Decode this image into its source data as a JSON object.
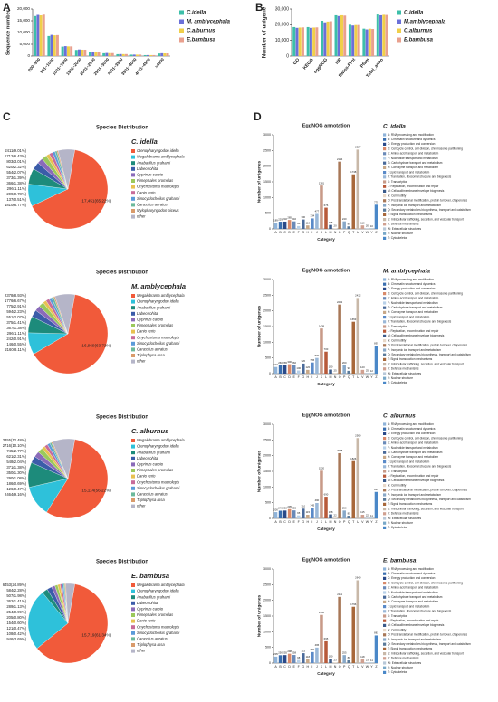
{
  "panels": [
    "A",
    "B",
    "C",
    "D"
  ],
  "chart_data": [
    {
      "type": "bar",
      "ylabel": "Sequence number",
      "categories": [
        "200~500",
        "501~1000",
        "1001~1500",
        "1501~2000",
        "2001~2500",
        "2501~3000",
        "3001~3500",
        "3501~4000",
        "4001~4500",
        ">4500"
      ],
      "series": [
        {
          "name": "C.idella",
          "color": "#3dbfa9",
          "values": [
            17000,
            8500,
            4000,
            2600,
            1800,
            1200,
            800,
            600,
            400,
            1100
          ]
        },
        {
          "name": "M. amblycephala",
          "color": "#6b70d8",
          "values": [
            17500,
            9000,
            4200,
            2800,
            1900,
            1300,
            850,
            620,
            420,
            1200
          ]
        },
        {
          "name": "C.alburnus",
          "color": "#f0cf4a",
          "values": [
            17300,
            8800,
            4100,
            2700,
            1850,
            1250,
            830,
            600,
            410,
            1150
          ]
        },
        {
          "name": "E.bambusa",
          "color": "#e9a08e",
          "values": [
            17600,
            8900,
            4100,
            2700,
            1900,
            1250,
            840,
            610,
            410,
            1150
          ]
        }
      ],
      "ylim": [
        0,
        20000
      ],
      "yticks": [
        0,
        {
          "value": 5000,
          "label": "5,000"
        },
        {
          "value": 10000,
          "label": "10,000"
        },
        {
          "value": 15000,
          "label": "15,000"
        },
        {
          "value": 20000,
          "label": "20,000"
        }
      ]
    },
    {
      "type": "bar",
      "ylabel": "Number of unigene",
      "categories": [
        "GO",
        "KEGG",
        "eggNOG",
        "NR",
        "Swiss-Prot",
        "Pfam",
        "Total_anno"
      ],
      "series": [
        {
          "name": "C.idella",
          "color": "#3dbfa9",
          "values": [
            18500,
            18500,
            22500,
            26000,
            20000,
            17500,
            26500
          ]
        },
        {
          "name": "M.amblycephala",
          "color": "#6b70d8",
          "values": [
            18000,
            18000,
            21500,
            25500,
            19500,
            17000,
            26000
          ]
        },
        {
          "name": "C.alburnus",
          "color": "#f0cf4a",
          "values": [
            18200,
            18200,
            22000,
            26000,
            19800,
            17500,
            26300
          ]
        },
        {
          "name": "E.bambusa",
          "color": "#e9a08e",
          "values": [
            18300,
            18300,
            22200,
            25800,
            19800,
            17300,
            26200
          ]
        }
      ],
      "ylim": [
        0,
        30000
      ],
      "yticks": [
        0,
        {
          "value": 10000,
          "label": "10,000"
        },
        {
          "value": 20000,
          "label": "20,000"
        },
        {
          "value": 30000,
          "label": "30,000"
        }
      ]
    },
    {
      "type": "pie",
      "title": "Species Distribution",
      "subtitle": "C. idella",
      "categories": [
        "Ctenopharyngodon idella",
        "Megalobrama amblycephala",
        "Anabarilius grahami",
        "Labeo rohita",
        "Cyprinus carpio",
        "Pimephales promelas",
        "Onychostoma macrolepis",
        "Danio rerio",
        "Sinocyclocheilus grahami",
        "Carassius auratus",
        "Mylopharyngodon piceus",
        "other"
      ],
      "values": [
        65.22,
        9.01,
        6.43,
        3.01,
        2.32,
        2.07,
        1.39,
        1.38,
        1.11,
        0.78,
        0.51,
        6.77
      ],
      "value_labels": [
        "17,451(65.22%)",
        "2411(9.01%)",
        "1712(6.43%)",
        "803(3.01%)",
        "620(2.32%)",
        "554(2.07%)",
        "373(1.39%)",
        "366(1.38%)",
        "296(1.11%)",
        "209(0.78%)",
        "137(0.51%)",
        "1810(6.77%)"
      ],
      "colors": [
        "#f15a3a",
        "#2ec1da",
        "#1d8b7b",
        "#3b5ca9",
        "#8a6bb9",
        "#9bc95b",
        "#e8c151",
        "#c86b99",
        "#5b9bd9",
        "#6bb99b",
        "#d99b6b",
        "#b5b5c8"
      ]
    },
    {
      "type": "pie",
      "title": "Species Distribution",
      "subtitle": "M. amblycephala",
      "categories": [
        "Megalobrama amblycephala",
        "Ctenopharyngodon idella",
        "Anabarilius grahami",
        "Labeo rohita",
        "Cyprinus carpio",
        "Pimephales promelas",
        "Danio rerio",
        "Onychostoma macrolepis",
        "Sinocyclocheilus grahami",
        "Carassius auratus",
        "Triplophysa rosa",
        "other"
      ],
      "values": [
        63.72,
        8.93,
        6.67,
        2.91,
        2.23,
        2.07,
        1.41,
        1.38,
        1.11,
        0.91,
        0.55,
        8.11
      ],
      "value_labels": [
        "16,969(63.72%)",
        "2378(8.93%)",
        "1776(6.67%)",
        "775(2.91%)",
        "594(2.23%)",
        "551(2.07%)",
        "375(1.41%)",
        "367(1.38%)",
        "296(1.11%)",
        "242(0.91%)",
        "146(0.55%)",
        "2160(8.11%)"
      ],
      "colors": [
        "#f15a3a",
        "#2ec1da",
        "#1d8b7b",
        "#3b5ca9",
        "#8a6bb9",
        "#9bc95b",
        "#e8c151",
        "#c86b99",
        "#5b9bd9",
        "#6bb99b",
        "#d99b6b",
        "#b5b5c8"
      ]
    },
    {
      "type": "pie",
      "title": "Species Distribution",
      "subtitle": "C. alburnus",
      "categories": [
        "Megalobrama amblycephala",
        "Ctenopharyngodon idella",
        "Anabarilius grahami",
        "Labeo rohita",
        "Cyprinus carpio",
        "Pimephales promelas",
        "Danio rerio",
        "Onychostoma macrolepis",
        "Sinocyclocheilus grahami",
        "Carassius auratus",
        "Triplophysa rosa",
        "other"
      ],
      "values": [
        56.22,
        12.48,
        10.1,
        2.77,
        2.31,
        2.04,
        1.38,
        1.3,
        1.08,
        0.69,
        0.47,
        9.16
      ],
      "value_labels": [
        "15,114(56.22%)",
        "3355(12.48%)",
        "2716(10.10%)",
        "745(2.77%)",
        "621(2.31%)",
        "548(2.04%)",
        "371(1.38%)",
        "350(1.30%)",
        "290(1.08%)",
        "186(0.69%)",
        "126(0.47%)",
        "2464(9.16%)"
      ],
      "colors": [
        "#f15a3a",
        "#2ec1da",
        "#1d8b7b",
        "#3b5ca9",
        "#8a6bb9",
        "#9bc95b",
        "#e8c151",
        "#c86b99",
        "#5b9bd9",
        "#6bb99b",
        "#d99b6b",
        "#b5b5c8"
      ]
    },
    {
      "type": "pie",
      "title": "Species Distribution",
      "subtitle": "E. bambusa",
      "categories": [
        "Megalobrama amblycephala",
        "Ctenopharyngodon idella",
        "Anabarilius grahami",
        "Labeo rohita",
        "Cyprinus carpio",
        "Pimephales promelas",
        "Danio rerio",
        "Onychostoma macrolepis",
        "Sinocyclocheilus grahami",
        "Carassius auratus",
        "Triplophysa rosa",
        "other"
      ],
      "values": [
        61.34,
        24.89,
        2.28,
        1.98,
        1.41,
        1.13,
        0.99,
        0.8,
        0.6,
        0.47,
        0.42,
        3.69
      ],
      "value_labels": [
        "15,719(61.34%)",
        "6453(24.89%)",
        "584(2.28%)",
        "507(1.98%)",
        "362(1.41%)",
        "289(1.13%)",
        "254(0.99%)",
        "205(0.80%)",
        "154(0.60%)",
        "121(0.47%)",
        "108(0.42%)",
        "946(3.69%)"
      ],
      "colors": [
        "#f15a3a",
        "#2ec1da",
        "#1d8b7b",
        "#3b5ca9",
        "#8a6bb9",
        "#9bc95b",
        "#e8c151",
        "#c86b99",
        "#5b9bd9",
        "#6bb99b",
        "#d99b6b",
        "#b5b5c8"
      ]
    },
    {
      "type": "bar",
      "title": "EggNOG annotation",
      "subtitle": "C. idella",
      "xlabel": "Category",
      "ylabel": "Number of unigenes",
      "categories": [
        "A",
        "B",
        "C",
        "D",
        "E",
        "F",
        "G",
        "H",
        "I",
        "J",
        "K",
        "L",
        "M",
        "N",
        "O",
        "P",
        "Q",
        "T",
        "U",
        "V",
        "W",
        "Y",
        "Z"
      ],
      "values": [
        189,
        229,
        232,
        285,
        240,
        90,
        300,
        110,
        334,
        477,
        1381,
        676,
        125,
        20,
        2144,
        240,
        80,
        1738,
        2527,
        110,
        20,
        10,
        770
      ],
      "ylim": [
        0,
        3000
      ],
      "yticks": [
        0,
        500,
        1000,
        1500,
        2000,
        2500,
        3000
      ]
    },
    {
      "type": "bar",
      "title": "EggNOG annotation",
      "subtitle": "M. amblycephala",
      "xlabel": "Category",
      "ylabel": "Number of unigenes",
      "categories": [
        "A",
        "B",
        "C",
        "D",
        "E",
        "F",
        "G",
        "H",
        "I",
        "J",
        "K",
        "L",
        "M",
        "N",
        "O",
        "P",
        "Q",
        "T",
        "U",
        "V",
        "W",
        "Y",
        "Z"
      ],
      "values": [
        210,
        260,
        265,
        300,
        260,
        100,
        320,
        120,
        355,
        500,
        1438,
        700,
        130,
        25,
        2202,
        260,
        90,
        1653,
        2412,
        120,
        25,
        12,
        893
      ],
      "ylim": [
        0,
        3000
      ],
      "yticks": [
        0,
        500,
        1000,
        1500,
        2000,
        2500,
        3000
      ]
    },
    {
      "type": "bar",
      "title": "EggNOG annotation",
      "subtitle": "C. alburnus",
      "xlabel": "Category",
      "ylabel": "Number of unigenes",
      "categories": [
        "A",
        "B",
        "C",
        "D",
        "E",
        "F",
        "G",
        "H",
        "I",
        "J",
        "K",
        "L",
        "M",
        "N",
        "O",
        "P",
        "Q",
        "T",
        "U",
        "V",
        "W",
        "Y",
        "Z"
      ],
      "values": [
        200,
        245,
        250,
        295,
        255,
        95,
        310,
        115,
        345,
        490,
        1520,
        690,
        128,
        22,
        2078,
        250,
        85,
        1826,
        2560,
        115,
        22,
        11,
        843
      ],
      "ylim": [
        0,
        3000
      ],
      "yticks": [
        0,
        500,
        1000,
        1500,
        2000,
        2500,
        3000
      ]
    },
    {
      "type": "bar",
      "title": "EggNOG annotation",
      "subtitle": "E. bambusa",
      "xlabel": "Category",
      "ylabel": "Number of unigenes",
      "categories": [
        "A",
        "B",
        "C",
        "D",
        "E",
        "F",
        "G",
        "H",
        "I",
        "J",
        "K",
        "L",
        "M",
        "N",
        "O",
        "P",
        "Q",
        "T",
        "U",
        "V",
        "W",
        "Y",
        "Z"
      ],
      "values": [
        205,
        250,
        255,
        298,
        258,
        98,
        315,
        118,
        350,
        495,
        1536,
        695,
        130,
        23,
        2111,
        255,
        88,
        1796,
        2640,
        118,
        23,
        11,
        881
      ],
      "ylim": [
        0,
        3000
      ],
      "yticks": [
        0,
        500,
        1000,
        1500,
        2000,
        2500,
        3000
      ]
    }
  ],
  "eggnog_legend": [
    "A: RNA processing and modification",
    "B: Chromatin structure and dynamics",
    "C: Energy production and conversion",
    "D: Cell cycle control, cell division, chromosome partitioning",
    "E: Amino acid transport and metabolism",
    "F: Nucleotide transport and metabolism",
    "G: Carbohydrate transport and metabolism",
    "H: Coenzyme transport and metabolism",
    "I: Lipid transport and metabolism",
    "J: Translation, ribosomal structure and biogenesis",
    "K: Transcription",
    "L: Replication, recombination and repair",
    "M: Cell wall/membrane/envelope biogenesis",
    "N: Cell motility",
    "O: Posttranslational modification, protein turnover, chaperones",
    "P: Inorganic ion transport and metabolism",
    "Q: Secondary metabolites biosynthesis, transport and catabolism",
    "T: Signal transduction mechanisms",
    "U: Intracellular trafficking, secretion, and vesicular transport",
    "V: Defense mechanisms",
    "W: Extracellular structures",
    "Y: Nuclear structure",
    "Z: Cytoskeleton"
  ],
  "eggnog_colors": [
    "#8fb3d9",
    "#3a6fb0",
    "#2a4a8a",
    "#d98a6a",
    "#6a8ab8",
    "#b8d0e8",
    "#4a6a9a",
    "#c8a888",
    "#5a8ac8",
    "#9ab8d8",
    "#c89a88",
    "#b85a3a",
    "#3a5a8a",
    "#e8d8c8",
    "#a87858",
    "#88a8c8",
    "#5a7a9a",
    "#a8683a",
    "#c8b8a8",
    "#d0a090",
    "#b8c8d8",
    "#78a8c8",
    "#4a88c8"
  ]
}
